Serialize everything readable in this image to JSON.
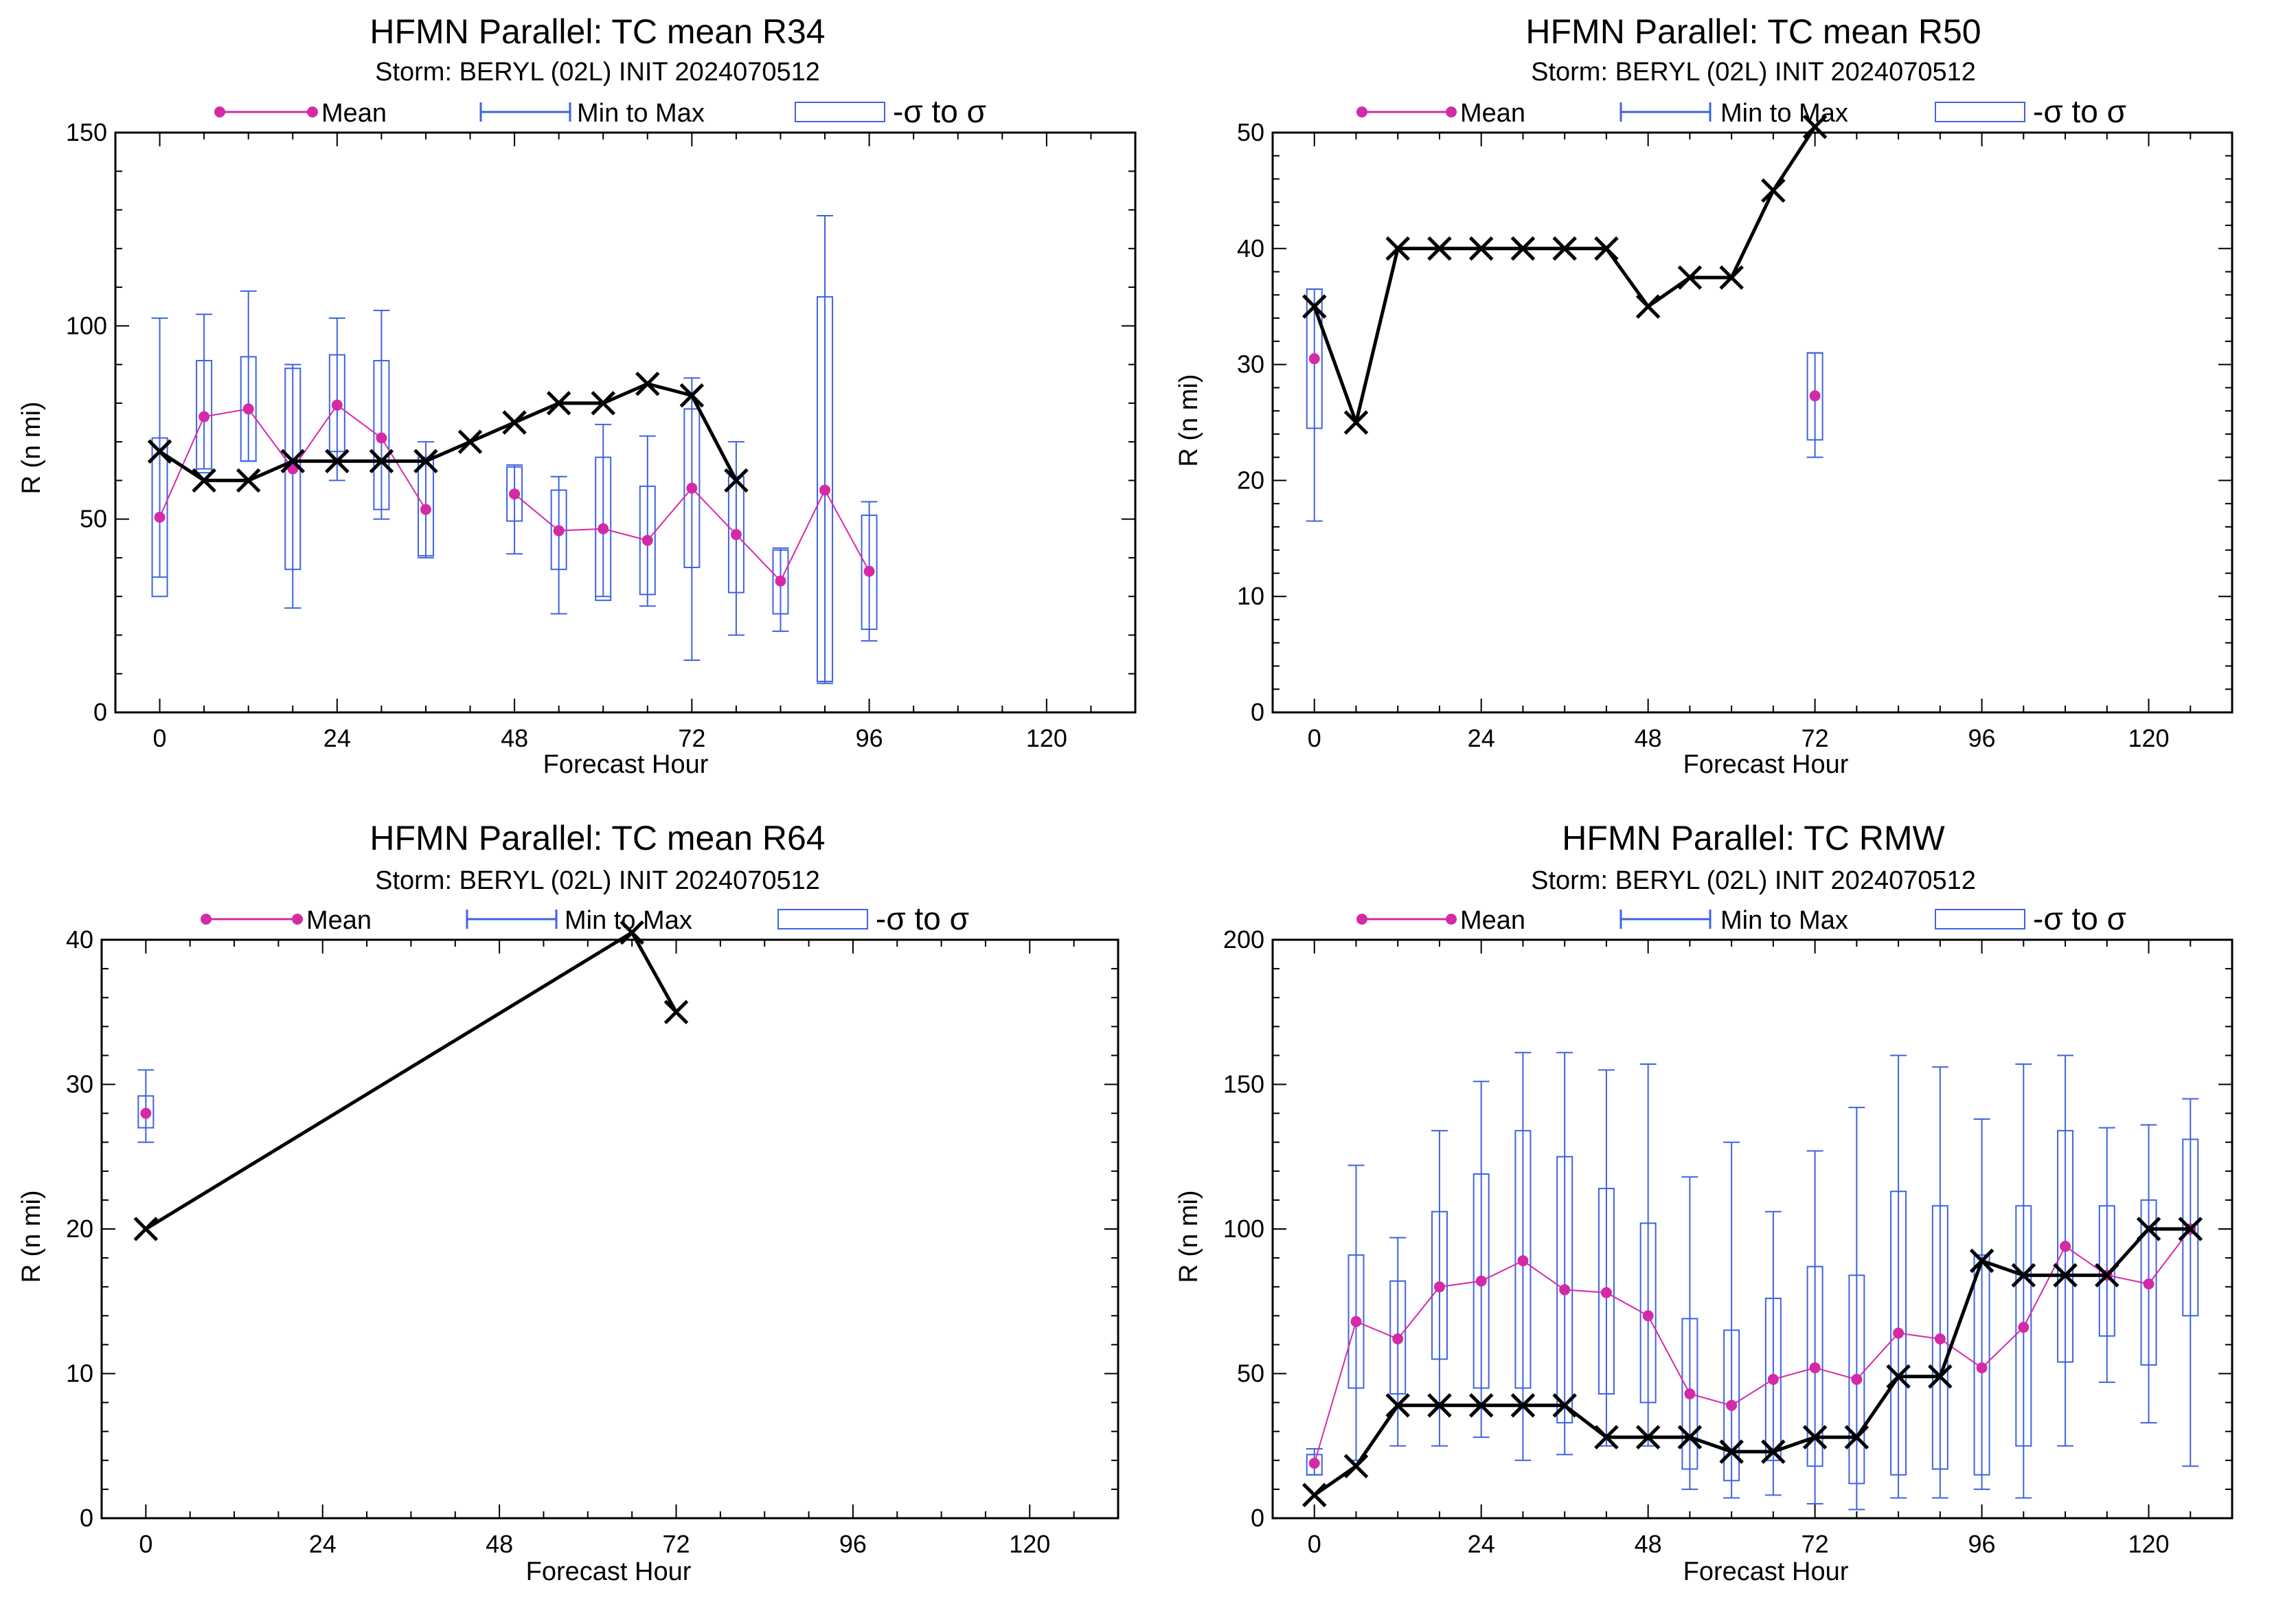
{
  "legend": {
    "mean": "Mean",
    "minmax": "Min to Max",
    "sigma": "-σ to σ"
  },
  "colors": {
    "mean": "#d42aa8",
    "box": "#3f63e0",
    "best_track": "#000000"
  },
  "chart_data": [
    {
      "type": "box",
      "title": "HFMN Parallel: TC mean R34",
      "subtitle": "Storm: BERYL (02L) INIT 2024070512",
      "xlabel": "Forecast Hour",
      "ylabel": "R (n mi)",
      "xlim": [
        -6,
        132
      ],
      "ylim": [
        0,
        150
      ],
      "xticks": [
        0,
        24,
        48,
        72,
        96,
        120
      ],
      "yticks": [
        0,
        50,
        100,
        150
      ],
      "x_minor": 6,
      "y_minor": 10,
      "grid": false,
      "legend_position": "top",
      "series": [
        {
          "name": "Mean",
          "x": [
            0,
            6,
            12,
            18,
            24,
            30,
            36,
            48,
            54,
            60,
            66,
            72,
            78,
            84,
            90,
            96
          ],
          "y": [
            50.5,
            76.5,
            78.5,
            63,
            79.5,
            71,
            52.5,
            56.5,
            47,
            47.5,
            44.5,
            58,
            46,
            34,
            57.5,
            36.5
          ],
          "breaks": [
            36
          ]
        },
        {
          "name": "Min to Max",
          "x": [
            0,
            6,
            12,
            18,
            24,
            30,
            36,
            48,
            54,
            60,
            66,
            72,
            78,
            84,
            90,
            96
          ],
          "min": [
            35,
            63,
            65,
            27,
            60,
            50,
            40,
            41,
            25.5,
            30,
            27.5,
            13.5,
            20,
            21,
            7.5,
            18.5
          ],
          "max": [
            102,
            103,
            109,
            90,
            102,
            104,
            70,
            64,
            61,
            74.5,
            71.5,
            86.5,
            70,
            42.5,
            128.5,
            54.5
          ]
        },
        {
          "name": "-σ to σ",
          "x": [
            0,
            6,
            12,
            18,
            24,
            30,
            36,
            48,
            54,
            60,
            66,
            72,
            78,
            84,
            90,
            96
          ],
          "low": [
            30,
            62,
            65,
            37,
            67.5,
            52.5,
            40.5,
            49.5,
            37,
            29,
            30.5,
            37.5,
            31,
            25.5,
            8,
            21.5
          ],
          "high": [
            71,
            91,
            92,
            89,
            92.5,
            91,
            66,
            63.5,
            57.5,
            66,
            58.5,
            78.5,
            61,
            42,
            107.5,
            51
          ]
        },
        {
          "name": "Best track",
          "x": [
            0,
            6,
            12,
            18,
            24,
            30,
            36,
            42,
            48,
            54,
            60,
            66,
            72,
            78
          ],
          "y": [
            67.5,
            60,
            60,
            65,
            65,
            65,
            65,
            70,
            75,
            80,
            80,
            85,
            82,
            60
          ]
        }
      ]
    },
    {
      "type": "box",
      "title": "HFMN Parallel: TC mean R50",
      "subtitle": "Storm: BERYL (02L) INIT 2024070512",
      "xlabel": "Forecast Hour",
      "ylabel": "R (n mi)",
      "xlim": [
        -6,
        132
      ],
      "ylim": [
        0,
        50
      ],
      "xticks": [
        0,
        24,
        48,
        72,
        96,
        120
      ],
      "yticks": [
        0,
        10,
        20,
        30,
        40,
        50
      ],
      "x_minor": 6,
      "y_minor": 2,
      "grid": false,
      "legend_position": "top",
      "series": [
        {
          "name": "Mean",
          "x": [
            0,
            72
          ],
          "y": [
            30.5,
            27.3
          ],
          "breaks": [
            0
          ]
        },
        {
          "name": "Min to Max",
          "x": [
            0,
            72
          ],
          "min": [
            16.5,
            22
          ],
          "max": [
            36.5,
            31
          ]
        },
        {
          "name": "-σ to σ",
          "x": [
            0,
            72
          ],
          "low": [
            24.5,
            23.5
          ],
          "high": [
            36.5,
            31
          ]
        },
        {
          "name": "Best track",
          "x": [
            0,
            6,
            12,
            18,
            24,
            30,
            36,
            42,
            48,
            54,
            60,
            66,
            72
          ],
          "y": [
            35,
            25,
            40,
            40,
            40,
            40,
            40,
            40,
            35,
            37.5,
            37.5,
            45,
            50.5
          ]
        }
      ]
    },
    {
      "type": "box",
      "title": "HFMN Parallel: TC mean R64",
      "subtitle": "Storm: BERYL (02L) INIT 2024070512",
      "xlabel": "Forecast Hour",
      "ylabel": "R (n mi)",
      "xlim": [
        -6,
        132
      ],
      "ylim": [
        0,
        40
      ],
      "xticks": [
        0,
        24,
        48,
        72,
        96,
        120
      ],
      "yticks": [
        0,
        10,
        20,
        30,
        40
      ],
      "x_minor": 6,
      "y_minor": 2,
      "grid": false,
      "legend_position": "top",
      "series": [
        {
          "name": "Mean",
          "x": [
            0
          ],
          "y": [
            28
          ],
          "breaks": []
        },
        {
          "name": "Min to Max",
          "x": [
            0
          ],
          "min": [
            26
          ],
          "max": [
            31
          ]
        },
        {
          "name": "-σ to σ",
          "x": [
            0
          ],
          "low": [
            27
          ],
          "high": [
            29.2
          ]
        },
        {
          "name": "Best track",
          "x": [
            0,
            66,
            72
          ],
          "y": [
            20,
            40.5,
            35
          ]
        }
      ]
    },
    {
      "type": "box",
      "title": "HFMN Parallel: TC RMW",
      "subtitle": "Storm: BERYL (02L) INIT 2024070512",
      "xlabel": "Forecast Hour",
      "ylabel": "R (n mi)",
      "xlim": [
        -6,
        132
      ],
      "ylim": [
        0,
        200
      ],
      "xticks": [
        0,
        24,
        48,
        72,
        96,
        120
      ],
      "yticks": [
        0,
        50,
        100,
        150,
        200
      ],
      "x_minor": 6,
      "y_minor": 10,
      "grid": false,
      "legend_position": "top",
      "series": [
        {
          "name": "Mean",
          "x": [
            0,
            6,
            12,
            18,
            24,
            30,
            36,
            42,
            48,
            54,
            60,
            66,
            72,
            78,
            84,
            90,
            96,
            102,
            108,
            114,
            120,
            126
          ],
          "y": [
            19,
            68,
            62,
            80,
            82,
            89,
            79,
            78,
            70,
            43,
            39,
            48,
            52,
            48,
            64,
            62,
            52,
            66,
            94,
            84,
            81,
            100
          ],
          "breaks": []
        },
        {
          "name": "Min to Max",
          "x": [
            0,
            6,
            12,
            18,
            24,
            30,
            36,
            42,
            48,
            54,
            60,
            66,
            72,
            78,
            84,
            90,
            96,
            102,
            108,
            114,
            120,
            126
          ],
          "min": [
            15,
            20,
            25,
            25,
            28,
            20,
            22,
            25,
            25,
            10,
            7,
            8,
            5,
            3,
            7,
            7,
            10,
            7,
            25,
            47,
            33,
            18
          ],
          "max": [
            24,
            122,
            97,
            134,
            151,
            161,
            161,
            155,
            157,
            118,
            130,
            106,
            127,
            142,
            160,
            156,
            138,
            157,
            160,
            135,
            136,
            145
          ]
        },
        {
          "name": "-σ to σ",
          "x": [
            0,
            6,
            12,
            18,
            24,
            30,
            36,
            42,
            48,
            54,
            60,
            66,
            72,
            78,
            84,
            90,
            96,
            102,
            108,
            114,
            120,
            126
          ],
          "low": [
            15,
            45,
            43,
            55,
            45,
            45,
            33,
            43,
            40,
            17,
            13,
            20,
            18,
            12,
            15,
            17,
            15,
            25,
            54,
            63,
            53,
            70
          ],
          "high": [
            22,
            91,
            82,
            106,
            119,
            134,
            125,
            114,
            102,
            69,
            65,
            76,
            87,
            84,
            113,
            108,
            91,
            108,
            134,
            108,
            110,
            131
          ]
        },
        {
          "name": "Best track",
          "x": [
            0,
            6,
            12,
            18,
            24,
            30,
            36,
            42,
            48,
            54,
            60,
            66,
            72,
            78,
            84,
            90,
            96,
            102,
            108,
            114,
            120,
            126
          ],
          "y": [
            8,
            18,
            39,
            39,
            39,
            39,
            39,
            28,
            28,
            28,
            23,
            23,
            28,
            28,
            49,
            49,
            89,
            84,
            84,
            84,
            100,
            100
          ]
        }
      ]
    }
  ]
}
